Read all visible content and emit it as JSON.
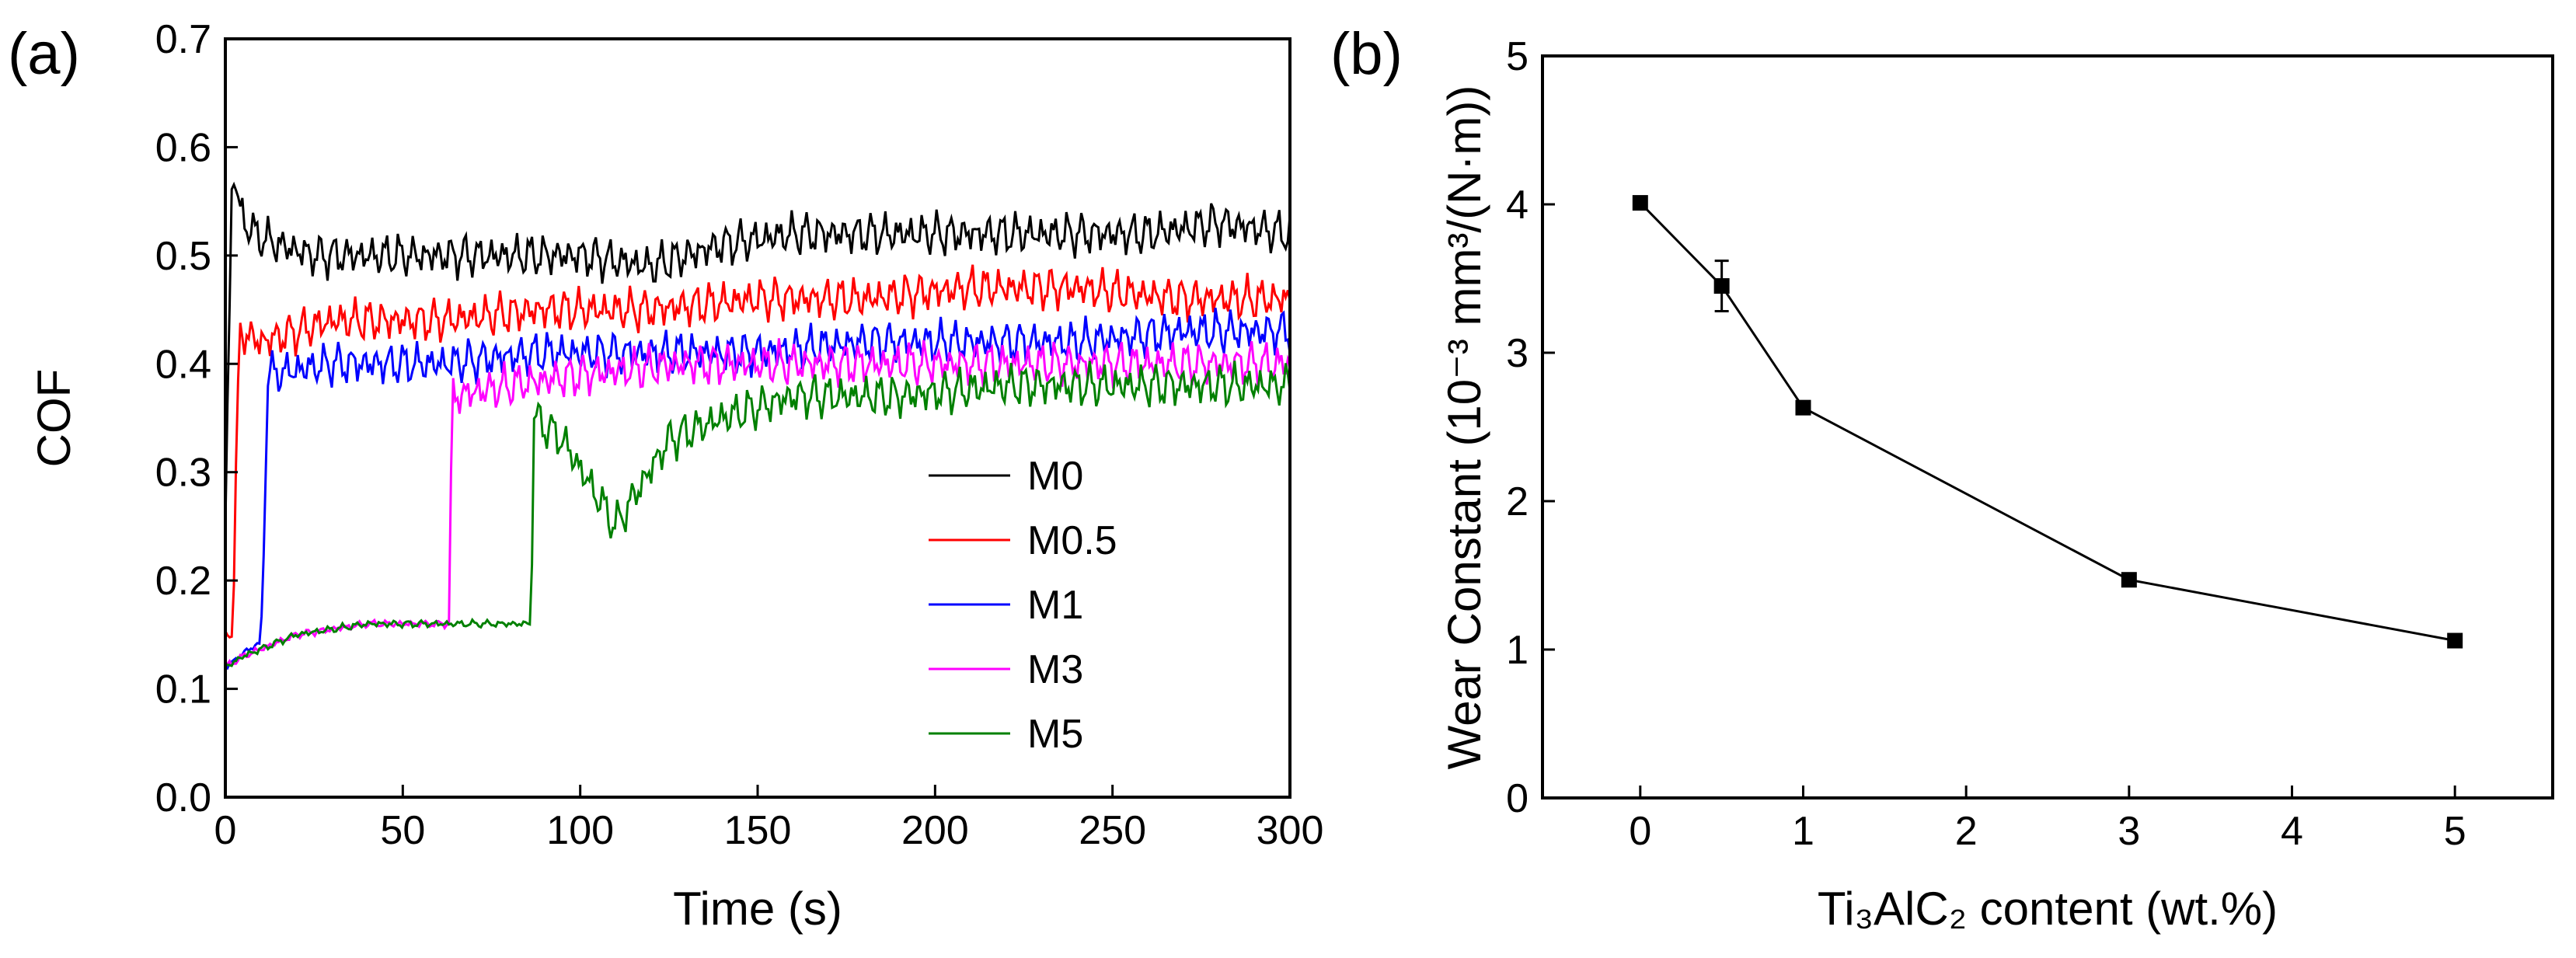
{
  "chart_data": [
    {
      "type": "line",
      "panel_label": "(a)",
      "xlabel": "Time (s)",
      "ylabel": "COF",
      "xlim": [
        0,
        300
      ],
      "ylim": [
        0.0,
        0.7
      ],
      "xticks": [
        "0",
        "50",
        "100",
        "150",
        "200",
        "250",
        "300"
      ],
      "yticks": [
        "0.0",
        "0.1",
        "0.2",
        "0.3",
        "0.4",
        "0.5",
        "0.6",
        "0.7"
      ],
      "legend_position": "lower-right",
      "series": [
        {
          "name": "M0",
          "color": "#000000",
          "x": [
            0,
            2,
            4,
            8,
            15,
            25,
            40,
            60,
            80,
            100,
            120,
            140,
            160,
            180,
            200,
            220,
            240,
            260,
            280,
            300
          ],
          "y": [
            0.25,
            0.59,
            0.54,
            0.52,
            0.51,
            0.5,
            0.5,
            0.5,
            0.5,
            0.5,
            0.49,
            0.51,
            0.52,
            0.52,
            0.52,
            0.52,
            0.52,
            0.52,
            0.53,
            0.52
          ]
        },
        {
          "name": "M0.5",
          "color": "#ff0000",
          "x": [
            0,
            2,
            4,
            10,
            30,
            60,
            90,
            120,
            150,
            180,
            210,
            240,
            270,
            300
          ],
          "y": [
            0.15,
            0.15,
            0.43,
            0.42,
            0.44,
            0.44,
            0.45,
            0.45,
            0.46,
            0.46,
            0.47,
            0.47,
            0.46,
            0.46
          ]
        },
        {
          "name": "M1",
          "color": "#0000ff",
          "x": [
            0,
            4,
            8,
            10,
            12,
            30,
            60,
            90,
            120,
            150,
            180,
            210,
            240,
            270,
            300
          ],
          "y": [
            0.12,
            0.13,
            0.14,
            0.14,
            0.39,
            0.4,
            0.4,
            0.41,
            0.41,
            0.41,
            0.42,
            0.42,
            0.42,
            0.43,
            0.43
          ]
        },
        {
          "name": "M3",
          "color": "#ff00ff",
          "x": [
            0,
            5,
            20,
            40,
            63,
            64,
            80,
            100,
            130,
            160,
            190,
            220,
            250,
            280,
            300
          ],
          "y": [
            0.12,
            0.13,
            0.15,
            0.16,
            0.16,
            0.37,
            0.38,
            0.39,
            0.4,
            0.4,
            0.4,
            0.4,
            0.4,
            0.4,
            0.4
          ]
        },
        {
          "name": "M5",
          "color": "#008000",
          "x": [
            0,
            5,
            20,
            40,
            60,
            86,
            87,
            95,
            110,
            125,
            140,
            160,
            190,
            220,
            250,
            280,
            300
          ],
          "y": [
            0.12,
            0.13,
            0.15,
            0.16,
            0.16,
            0.16,
            0.35,
            0.33,
            0.25,
            0.33,
            0.35,
            0.37,
            0.37,
            0.38,
            0.38,
            0.38,
            0.38
          ]
        }
      ]
    },
    {
      "type": "line",
      "panel_label": "(b)",
      "xlabel": "Ti₃AlC₂ content (wt.%)",
      "ylabel": "Wear Constant (10⁻³ mm³/(N·m))",
      "xlim": [
        -0.6,
        5.6
      ],
      "ylim": [
        0,
        5
      ],
      "xticks": [
        "0",
        "1",
        "2",
        "3",
        "4",
        "5"
      ],
      "yticks": [
        "0",
        "1",
        "2",
        "3",
        "4",
        "5"
      ],
      "series": [
        {
          "name": "Wear Constant",
          "color": "#000000",
          "x": [
            0,
            0.5,
            1,
            3,
            5
          ],
          "y": [
            4.01,
            3.45,
            2.63,
            1.47,
            1.06
          ],
          "error": [
            0.03,
            0.17,
            0.04,
            0.03,
            0.03
          ]
        }
      ]
    }
  ]
}
